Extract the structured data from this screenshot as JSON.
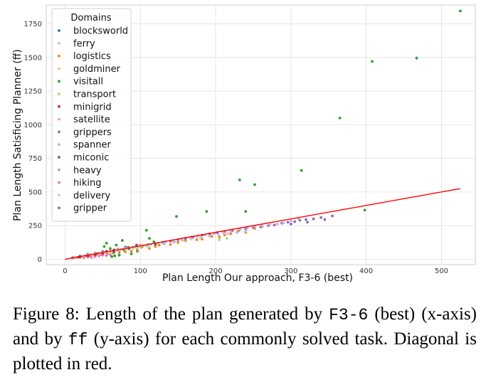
{
  "chart_data": {
    "type": "scatter",
    "xlabel": "Plan Length Our approach, F3-6 (best)",
    "ylabel": "Plan Length Satisficing Planner (ff)",
    "xlim": [
      -25,
      545
    ],
    "ylim": [
      -40,
      1890
    ],
    "xticks": [
      0,
      100,
      200,
      300,
      400,
      500
    ],
    "yticks": [
      0,
      250,
      500,
      750,
      1000,
      1250,
      1500,
      1750
    ],
    "grid": true,
    "legend": {
      "title": "Domains",
      "placement": "top-left",
      "entries": [
        {
          "name": "blocksworld",
          "color": "#1f77b4"
        },
        {
          "name": "ferry",
          "color": "#aec7e8"
        },
        {
          "name": "logistics",
          "color": "#ff7f0e"
        },
        {
          "name": "goldminer",
          "color": "#ffbb78"
        },
        {
          "name": "visitall",
          "color": "#2ca02c"
        },
        {
          "name": "transport",
          "color": "#98df8a"
        },
        {
          "name": "minigrid",
          "color": "#d62728"
        },
        {
          "name": "satellite",
          "color": "#ff9896"
        },
        {
          "name": "grippers",
          "color": "#9467bd"
        },
        {
          "name": "spanner",
          "color": "#c5b0d5"
        },
        {
          "name": "miconic",
          "color": "#8c564b"
        },
        {
          "name": "heavy",
          "color": "#c49c94"
        },
        {
          "name": "hiking",
          "color": "#e377c2"
        },
        {
          "name": "delivery",
          "color": "#f7b6d2"
        },
        {
          "name": "gripper",
          "color": "#7f7f7f"
        }
      ]
    },
    "diagonal": {
      "x": [
        0,
        525
      ],
      "y": [
        0,
        525
      ],
      "color": "#ff0000"
    },
    "series": [
      {
        "name": "visitall",
        "color": "#2ca02c",
        "points": [
          [
            525,
            1845
          ],
          [
            408,
            1470
          ],
          [
            467,
            1495
          ],
          [
            365,
            1050
          ],
          [
            314,
            660
          ],
          [
            232,
            590
          ],
          [
            252,
            555
          ],
          [
            240,
            355
          ],
          [
            188,
            355
          ],
          [
            148,
            318
          ],
          [
            398,
            365
          ],
          [
            118,
            130
          ],
          [
            112,
            155
          ],
          [
            108,
            215
          ],
          [
            60,
            80
          ],
          [
            55,
            120
          ],
          [
            68,
            105
          ],
          [
            72,
            30
          ],
          [
            62,
            20
          ],
          [
            45,
            45
          ],
          [
            84,
            90
          ],
          [
            96,
            60
          ],
          [
            76,
            140
          ],
          [
            66,
            25
          ],
          [
            88,
            40
          ],
          [
            78,
            70
          ],
          [
            52,
            95
          ]
        ]
      },
      {
        "name": "logistics",
        "color": "#ff7f0e",
        "points": [
          [
            220,
            190
          ],
          [
            212,
            180
          ],
          [
            205,
            165
          ],
          [
            195,
            170
          ],
          [
            182,
            150
          ],
          [
            168,
            165
          ],
          [
            160,
            140
          ],
          [
            150,
            125
          ],
          [
            140,
            110
          ],
          [
            132,
            115
          ],
          [
            120,
            95
          ],
          [
            112,
            80
          ],
          [
            102,
            90
          ],
          [
            96,
            70
          ],
          [
            88,
            60
          ],
          [
            80,
            55
          ],
          [
            72,
            50
          ],
          [
            64,
            45
          ],
          [
            56,
            40
          ],
          [
            48,
            35
          ],
          [
            40,
            28
          ],
          [
            32,
            22
          ],
          [
            24,
            18
          ],
          [
            16,
            12
          ],
          [
            230,
            210
          ],
          [
            240,
            200
          ],
          [
            252,
            230
          ],
          [
            262,
            245
          ],
          [
            175,
            145
          ],
          [
            145,
            130
          ],
          [
            125,
            105
          ]
        ]
      },
      {
        "name": "grippers",
        "color": "#9467bd",
        "points": [
          [
            340,
            310
          ],
          [
            330,
            300
          ],
          [
            320,
            295
          ],
          [
            312,
            290
          ],
          [
            305,
            280
          ],
          [
            296,
            275
          ],
          [
            288,
            268
          ],
          [
            278,
            255
          ],
          [
            270,
            250
          ],
          [
            260,
            240
          ],
          [
            250,
            235
          ],
          [
            240,
            225
          ],
          [
            232,
            220
          ],
          [
            222,
            212
          ],
          [
            212,
            205
          ],
          [
            202,
            198
          ],
          [
            192,
            188
          ],
          [
            182,
            178
          ],
          [
            170,
            165
          ],
          [
            160,
            155
          ],
          [
            150,
            145
          ],
          [
            140,
            135
          ],
          [
            130,
            125
          ],
          [
            120,
            115
          ],
          [
            110,
            108
          ],
          [
            100,
            97
          ],
          [
            90,
            88
          ],
          [
            80,
            78
          ],
          [
            70,
            68
          ],
          [
            60,
            58
          ],
          [
            50,
            48
          ],
          [
            40,
            38
          ],
          [
            355,
            322
          ],
          [
            322,
            275
          ],
          [
            345,
            295
          ],
          [
            300,
            262
          ]
        ]
      },
      {
        "name": "spanner",
        "color": "#c5b0d5",
        "points": [
          [
            310,
            300
          ],
          [
            300,
            285
          ],
          [
            290,
            270
          ],
          [
            282,
            262
          ],
          [
            272,
            255
          ],
          [
            262,
            248
          ],
          [
            252,
            240
          ],
          [
            242,
            232
          ],
          [
            232,
            222
          ],
          [
            220,
            210
          ],
          [
            210,
            200
          ],
          [
            198,
            190
          ],
          [
            186,
            180
          ],
          [
            176,
            170
          ],
          [
            166,
            160
          ],
          [
            154,
            150
          ],
          [
            144,
            140
          ],
          [
            134,
            130
          ],
          [
            124,
            120
          ],
          [
            114,
            110
          ],
          [
            104,
            100
          ],
          [
            94,
            90
          ],
          [
            84,
            82
          ],
          [
            74,
            72
          ],
          [
            64,
            62
          ],
          [
            54,
            52
          ],
          [
            44,
            42
          ]
        ]
      },
      {
        "name": "ferry",
        "color": "#aec7e8",
        "points": [
          [
            240,
            210
          ],
          [
            228,
            198
          ],
          [
            216,
            190
          ],
          [
            204,
            180
          ],
          [
            192,
            170
          ],
          [
            180,
            160
          ],
          [
            168,
            150
          ],
          [
            156,
            140
          ],
          [
            144,
            128
          ],
          [
            132,
            118
          ],
          [
            120,
            108
          ],
          [
            108,
            98
          ],
          [
            96,
            86
          ],
          [
            84,
            76
          ],
          [
            72,
            66
          ],
          [
            60,
            56
          ],
          [
            48,
            44
          ],
          [
            36,
            34
          ],
          [
            24,
            22
          ],
          [
            12,
            11
          ]
        ]
      },
      {
        "name": "miconic",
        "color": "#8c564b",
        "points": [
          [
            120,
            110
          ],
          [
            110,
            100
          ],
          [
            100,
            92
          ],
          [
            90,
            84
          ],
          [
            80,
            76
          ],
          [
            70,
            66
          ],
          [
            60,
            58
          ],
          [
            50,
            48
          ],
          [
            42,
            40
          ],
          [
            34,
            32
          ],
          [
            26,
            24
          ],
          [
            18,
            16
          ],
          [
            10,
            9
          ],
          [
            95,
            105
          ],
          [
            85,
            80
          ],
          [
            65,
            70
          ],
          [
            55,
            60
          ]
        ]
      },
      {
        "name": "gripper",
        "color": "#7f7f7f",
        "points": [
          [
            90,
            88
          ],
          [
            80,
            78
          ],
          [
            70,
            68
          ],
          [
            60,
            58
          ],
          [
            50,
            48
          ],
          [
            40,
            38
          ],
          [
            30,
            28
          ],
          [
            20,
            18
          ],
          [
            10,
            9
          ]
        ]
      },
      {
        "name": "blocksworld",
        "color": "#1f77b4",
        "points": [
          [
            80,
            90
          ],
          [
            70,
            75
          ],
          [
            60,
            65
          ],
          [
            50,
            58
          ],
          [
            40,
            46
          ],
          [
            30,
            36
          ],
          [
            20,
            24
          ],
          [
            10,
            12
          ],
          [
            65,
            55
          ],
          [
            45,
            40
          ]
        ]
      },
      {
        "name": "satellite",
        "color": "#ff9896",
        "points": [
          [
            100,
            105
          ],
          [
            90,
            92
          ],
          [
            80,
            82
          ],
          [
            70,
            72
          ],
          [
            60,
            62
          ],
          [
            50,
            50
          ],
          [
            40,
            42
          ],
          [
            30,
            30
          ]
        ]
      },
      {
        "name": "hiking",
        "color": "#e377c2",
        "points": [
          [
            40,
            20
          ],
          [
            35,
            15
          ],
          [
            30,
            18
          ],
          [
            25,
            12
          ],
          [
            45,
            25
          ],
          [
            50,
            30
          ],
          [
            55,
            28
          ],
          [
            60,
            35
          ]
        ]
      },
      {
        "name": "heavy",
        "color": "#c49c94",
        "points": [
          [
            35,
            33
          ],
          [
            30,
            28
          ],
          [
            25,
            23
          ],
          [
            20,
            18
          ],
          [
            15,
            14
          ],
          [
            10,
            9
          ],
          [
            45,
            43
          ]
        ]
      },
      {
        "name": "transport",
        "color": "#98df8a",
        "points": [
          [
            110,
            100
          ],
          [
            100,
            92
          ],
          [
            90,
            82
          ],
          [
            80,
            74
          ],
          [
            70,
            66
          ],
          [
            60,
            56
          ],
          [
            50,
            46
          ],
          [
            215,
            155
          ],
          [
            205,
            145
          ]
        ]
      },
      {
        "name": "goldminer",
        "color": "#ffbb78",
        "points": [
          [
            60,
            58
          ],
          [
            50,
            48
          ],
          [
            40,
            38
          ],
          [
            30,
            28
          ],
          [
            70,
            68
          ]
        ]
      },
      {
        "name": "minigrid",
        "color": "#d62728",
        "points": [
          [
            30,
            25
          ],
          [
            40,
            34
          ],
          [
            50,
            44
          ],
          [
            20,
            16
          ]
        ]
      },
      {
        "name": "delivery",
        "color": "#f7b6d2",
        "points": [
          [
            25,
            22
          ],
          [
            35,
            30
          ],
          [
            45,
            40
          ],
          [
            15,
            12
          ]
        ]
      }
    ]
  },
  "caption": {
    "part1": "Figure 8: Length of the plan generated by ",
    "code1": "F3-6",
    "part2": " (best) (x-axis) and by ",
    "code2": "ff",
    "part3": " (y-axis) for each commonly solved task. Diagonal is plotted in red."
  }
}
